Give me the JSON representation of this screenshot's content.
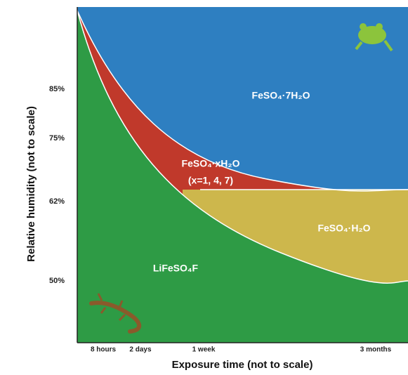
{
  "axes": {
    "y_title": "Relative humidity (not to scale)",
    "x_title": "Exposure time (not to scale)",
    "y_ticks": [
      "85%",
      "75%",
      "62%",
      "50%"
    ],
    "x_ticks": [
      "8 hours",
      "2 days",
      "1 week",
      "3 months"
    ]
  },
  "regions": {
    "heptahydrate": "FeSO₄·7H₂O",
    "mixed": "FeSO₄·xH₂O",
    "mixed_note": "(x=1, 4, 7)",
    "monohydrate": "FeSO₄·H₂O",
    "lithium": "LiFeSO₄F"
  }
}
